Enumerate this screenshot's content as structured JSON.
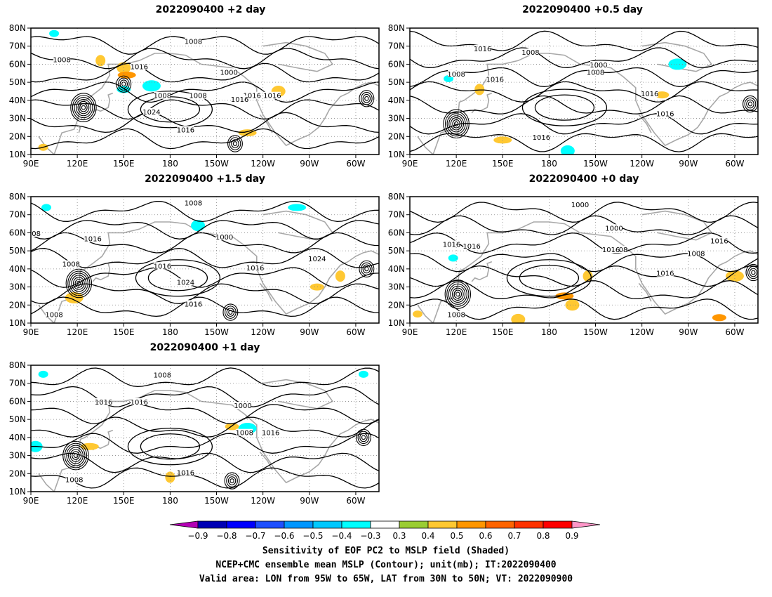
{
  "panels": [
    {
      "title": "2022090400 +2 day",
      "contour_labels": [
        "1008",
        "1008",
        "1016",
        "1000",
        "1016",
        "1008",
        "1016",
        "1024",
        "1016",
        "1008",
        "1016"
      ],
      "shaded": [
        {
          "lon": 105,
          "lat": 77,
          "v": -0.4
        },
        {
          "lon": 150,
          "lat": 58,
          "v": 0.4
        },
        {
          "lon": 152,
          "lat": 54,
          "v": 0.5
        },
        {
          "lon": 135,
          "lat": 62,
          "v": 0.4
        },
        {
          "lon": 150,
          "lat": 46,
          "v": -0.4
        },
        {
          "lon": 168,
          "lat": 48,
          "v": -0.4
        },
        {
          "lon": 98,
          "lat": 14,
          "v": 0.4
        },
        {
          "lon": 250,
          "lat": 45,
          "v": 0.4
        },
        {
          "lon": 230,
          "lat": 22,
          "v": 0.4
        }
      ]
    },
    {
      "title": "2022090400 +0.5 day",
      "contour_labels": [
        "1016",
        "1008",
        "1008",
        "1016",
        "1000",
        "1008",
        "1016",
        "1016",
        "1016"
      ],
      "shaded": [
        {
          "lon": 115,
          "lat": 52,
          "v": -0.4
        },
        {
          "lon": 192,
          "lat": 12,
          "v": -0.4
        },
        {
          "lon": 150,
          "lat": 18,
          "v": 0.4
        },
        {
          "lon": 135,
          "lat": 46,
          "v": 0.4
        },
        {
          "lon": 253,
          "lat": 43,
          "v": 0.4
        },
        {
          "lon": 263,
          "lat": 60,
          "v": -0.4
        }
      ]
    },
    {
      "title": "2022090400 +1.5 day",
      "contour_labels": [
        "1008",
        "1016",
        "1000",
        "1008",
        "1016",
        "1016",
        "1024",
        "1024",
        "1016",
        "1008",
        "008"
      ],
      "shaded": [
        {
          "lon": 100,
          "lat": 74,
          "v": -0.4
        },
        {
          "lon": 198,
          "lat": 64,
          "v": -0.4
        },
        {
          "lon": 262,
          "lat": 74,
          "v": -0.4
        },
        {
          "lon": 290,
          "lat": 36,
          "v": 0.4
        },
        {
          "lon": 275,
          "lat": 30,
          "v": 0.4
        },
        {
          "lon": 118,
          "lat": 24,
          "v": 0.4
        }
      ]
    },
    {
      "title": "2022090400 +0 day",
      "contour_labels": [
        "1000",
        "1016",
        "1016",
        "1000",
        "1008",
        "1016",
        "1008",
        "1016",
        "1016",
        "1008"
      ],
      "shaded": [
        {
          "lon": 118,
          "lat": 46,
          "v": -0.4
        },
        {
          "lon": 195,
          "lat": 20,
          "v": 0.4
        },
        {
          "lon": 190,
          "lat": 25,
          "v": 0.5
        },
        {
          "lon": 205,
          "lat": 36,
          "v": 0.4
        },
        {
          "lon": 290,
          "lat": 13,
          "v": 0.5
        },
        {
          "lon": 300,
          "lat": 36,
          "v": 0.4
        },
        {
          "lon": 95,
          "lat": 15,
          "v": 0.4
        },
        {
          "lon": 160,
          "lat": 12,
          "v": 0.4
        }
      ]
    },
    {
      "title": "2022090400 +1 day",
      "contour_labels": [
        "1008",
        "1016",
        "1016",
        "1000",
        "1008",
        "1016",
        "1016",
        "1008"
      ],
      "shaded": [
        {
          "lon": 98,
          "lat": 75,
          "v": -0.4
        },
        {
          "lon": 93,
          "lat": 35,
          "v": -0.4
        },
        {
          "lon": 128,
          "lat": 35,
          "v": 0.4
        },
        {
          "lon": 180,
          "lat": 18,
          "v": 0.4
        },
        {
          "lon": 220,
          "lat": 46,
          "v": 0.4
        },
        {
          "lon": 230,
          "lat": 45,
          "v": -0.4
        },
        {
          "lon": 305,
          "lat": 75,
          "v": -0.4
        }
      ]
    }
  ],
  "map_axes": {
    "x_ticks": [
      "90E",
      "120E",
      "150E",
      "180",
      "150W",
      "120W",
      "90W",
      "60W"
    ],
    "y_ticks": [
      "10N",
      "20N",
      "30N",
      "40N",
      "50N",
      "60N",
      "70N",
      "80N"
    ]
  },
  "colorbar": {
    "tick_labels": [
      "-0.9",
      "-0.8",
      "-0.7",
      "-0.6",
      "-0.5",
      "-0.4",
      "-0.3",
      "0.3",
      "0.4",
      "0.5",
      "0.6",
      "0.7",
      "0.8",
      "0.9"
    ],
    "colors": [
      "#b400b4",
      "#0000b4",
      "#0000ff",
      "#1e50ff",
      "#0096ff",
      "#00c8ff",
      "#00ffff",
      "#ffffff",
      "#9acd32",
      "#ffc832",
      "#ff9600",
      "#ff6400",
      "#ff3200",
      "#ff0000",
      "#ff96c8"
    ]
  },
  "caption": {
    "line1": "Sensitivity of EOF PC2 to MSLP field (Shaded)",
    "line2": "NCEP+CMC ensemble mean MSLP (Contour); unit(mb); IT:2022090400",
    "line3": "Valid area: LON from 95W to 65W, LAT from 30N to 50N; VT: 2022090900"
  }
}
